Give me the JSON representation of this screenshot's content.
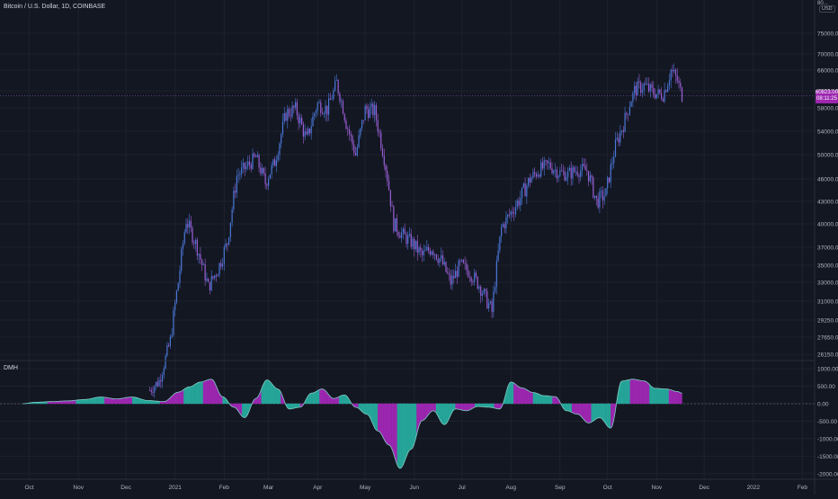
{
  "header": {
    "symbol_title": "Bitcoin / U.S. Dollar, 1D, COINBASE"
  },
  "price_axis": {
    "currency_badge": "USD",
    "ticks": [
      "75000.00",
      "70000.00",
      "66000.00",
      "62000.00",
      "58000.00",
      "54000.00",
      "50000.00",
      "46000.00",
      "43000.00",
      "40000.00",
      "37000.00",
      "35000.00",
      "33000.00",
      "31000.00",
      "29250.00",
      "27650.00",
      "26150.00"
    ],
    "top_cut_label": "80..."
  },
  "last_price": {
    "price": "60823.00",
    "countdown": "08:11:25",
    "color": "#9c27b0"
  },
  "indicator": {
    "name": "DMH",
    "ticks": [
      "1000.00",
      "500.00",
      "0.00",
      "-500.00",
      "-1000.00",
      "-1500.00",
      "-2000.00"
    ]
  },
  "time_axis": {
    "labels": [
      "Oct",
      "Nov",
      "Dec",
      "2021",
      "Feb",
      "Mar",
      "Apr",
      "May",
      "Jun",
      "Jul",
      "Aug",
      "Sep",
      "Oct",
      "Nov",
      "Dec",
      "2022",
      "Feb"
    ]
  },
  "colors": {
    "background": "#131722",
    "candle_up": "#4a78d9",
    "candle_down": "#9b5fd6",
    "hist_positive": "#26a69a",
    "hist_negative": "#9c27b0",
    "grid": "#1e222d"
  },
  "chart_data": [
    {
      "type": "candlestick",
      "title": "Bitcoin / U.S. Dollar, 1D, COINBASE",
      "ylabel": "USD",
      "x": [
        "2020-12-16",
        "2020-12-22",
        "2020-12-29",
        "2021-01-03",
        "2021-01-08",
        "2021-01-15",
        "2021-01-22",
        "2021-01-28",
        "2021-02-03",
        "2021-02-09",
        "2021-02-15",
        "2021-02-21",
        "2021-02-27",
        "2021-03-05",
        "2021-03-12",
        "2021-03-18",
        "2021-03-25",
        "2021-04-01",
        "2021-04-07",
        "2021-04-13",
        "2021-04-19",
        "2021-04-25",
        "2021-05-01",
        "2021-05-07",
        "2021-05-13",
        "2021-05-19",
        "2021-05-25",
        "2021-05-31",
        "2021-06-06",
        "2021-06-12",
        "2021-06-18",
        "2021-06-24",
        "2021-06-30",
        "2021-07-06",
        "2021-07-12",
        "2021-07-20",
        "2021-07-26",
        "2021-08-01",
        "2021-08-07",
        "2021-08-13",
        "2021-08-19",
        "2021-08-25",
        "2021-08-31",
        "2021-09-06",
        "2021-09-12",
        "2021-09-18",
        "2021-09-24",
        "2021-09-30",
        "2021-10-06",
        "2021-10-12",
        "2021-10-18",
        "2021-10-24",
        "2021-10-30",
        "2021-11-05",
        "2021-11-10",
        "2021-11-14",
        "2021-11-17"
      ],
      "close": [
        23000,
        23800,
        27300,
        33000,
        40500,
        37000,
        32500,
        34500,
        37600,
        46500,
        48000,
        49500,
        45500,
        48800,
        57000,
        58000,
        52500,
        59000,
        57800,
        63500,
        55500,
        50000,
        57800,
        57500,
        49500,
        40000,
        38500,
        37500,
        36000,
        37000,
        35500,
        33000,
        35000,
        34200,
        32700,
        30000,
        39500,
        41500,
        43500,
        46000,
        47500,
        48300,
        47100,
        46800,
        47500,
        47400,
        43000,
        44000,
        51500,
        56000,
        62000,
        63000,
        61500,
        61000,
        66000,
        64000,
        60800
      ],
      "ylim": [
        26150,
        80000
      ]
    },
    {
      "type": "area",
      "title": "DMH",
      "x": [
        "2020-09-27",
        "2020-10-05",
        "2020-10-15",
        "2020-10-25",
        "2020-11-05",
        "2020-11-15",
        "2020-11-25",
        "2020-12-05",
        "2020-12-15",
        "2020-12-25",
        "2021-01-03",
        "2021-01-10",
        "2021-01-17",
        "2021-01-24",
        "2021-01-31",
        "2021-02-07",
        "2021-02-14",
        "2021-02-21",
        "2021-02-28",
        "2021-03-07",
        "2021-03-14",
        "2021-03-21",
        "2021-03-28",
        "2021-04-04",
        "2021-04-11",
        "2021-04-18",
        "2021-04-25",
        "2021-05-02",
        "2021-05-09",
        "2021-05-16",
        "2021-05-23",
        "2021-05-30",
        "2021-06-06",
        "2021-06-13",
        "2021-06-20",
        "2021-06-27",
        "2021-07-04",
        "2021-07-11",
        "2021-07-18",
        "2021-07-25",
        "2021-08-01",
        "2021-08-08",
        "2021-08-15",
        "2021-08-22",
        "2021-08-29",
        "2021-09-05",
        "2021-09-12",
        "2021-09-19",
        "2021-09-26",
        "2021-10-03",
        "2021-10-10",
        "2021-10-17",
        "2021-10-24",
        "2021-10-31",
        "2021-11-07",
        "2021-11-14",
        "2021-11-17"
      ],
      "values": [
        0,
        40,
        60,
        80,
        120,
        190,
        140,
        190,
        90,
        60,
        330,
        480,
        620,
        700,
        200,
        -100,
        -400,
        150,
        680,
        420,
        -150,
        -100,
        300,
        420,
        150,
        250,
        -100,
        -300,
        -780,
        -1180,
        -1850,
        -1300,
        -480,
        -200,
        -600,
        -150,
        -200,
        -80,
        -100,
        -150,
        620,
        450,
        320,
        230,
        200,
        -200,
        -300,
        -550,
        -400,
        -700,
        650,
        700,
        650,
        440,
        420,
        350,
        300
      ],
      "ylim": [
        -2000,
        1000
      ]
    }
  ]
}
